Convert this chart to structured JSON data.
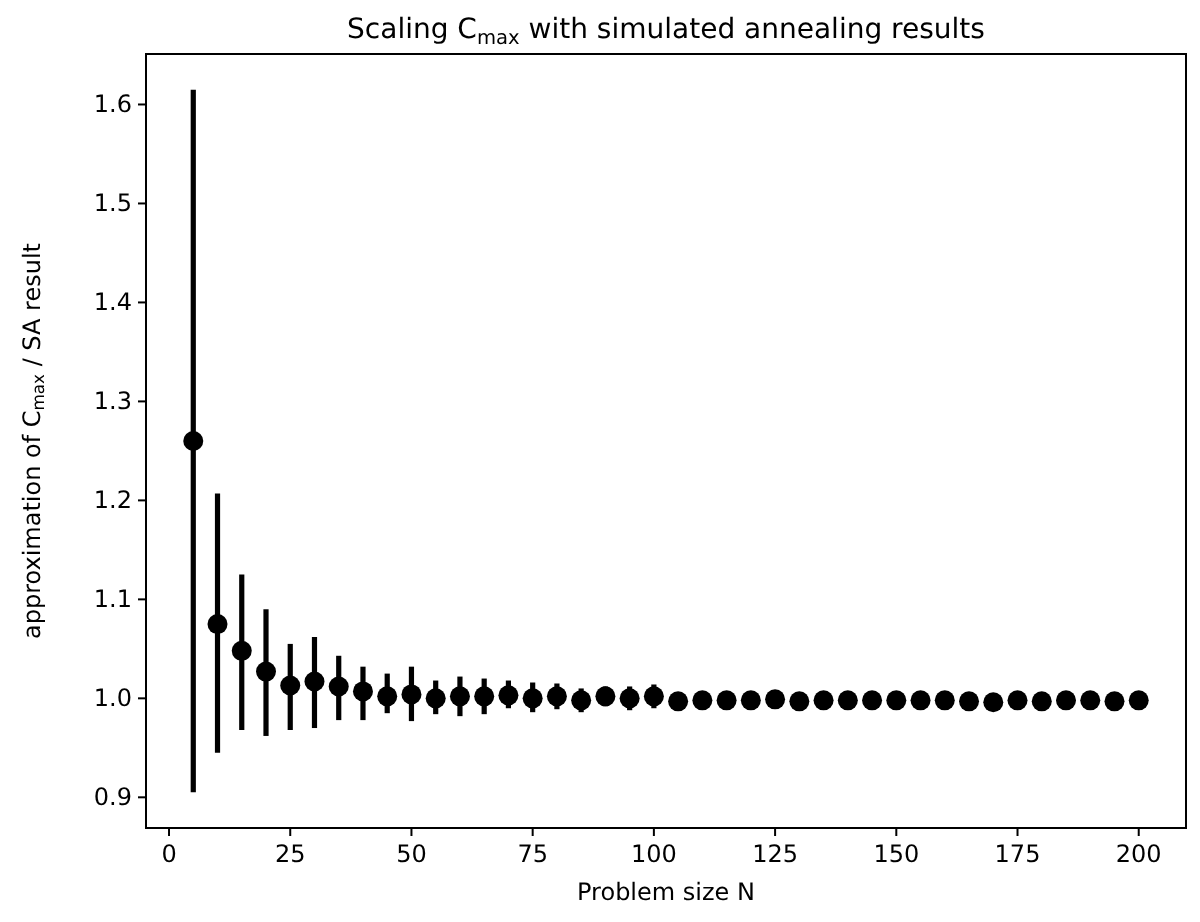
{
  "chart_data": {
    "type": "scatter",
    "title": "Scaling C$_{max}$ with simulated annealing results",
    "xlabel": "Problem size N",
    "ylabel": "approximation of C$_{max}$ / SA result",
    "marker": "circle",
    "grid": false,
    "xlim": [
      -4.75,
      209.75
    ],
    "xticks": [
      0,
      25,
      50,
      75,
      100,
      125,
      150,
      175,
      200
    ],
    "ylim": [
      0.869,
      1.651
    ],
    "yticks": [
      0.9,
      {
        "value": 1.0,
        "label": "1.0"
      },
      1.1,
      1.2,
      1.3,
      1.4,
      1.5,
      1.6
    ],
    "series": [
      {
        "color": "#000000",
        "x": [
          5,
          10,
          15,
          20,
          25,
          30,
          35,
          40,
          45,
          50,
          55,
          60,
          65,
          70,
          75,
          80,
          85,
          90,
          95,
          100,
          105,
          110,
          115,
          120,
          125,
          130,
          135,
          140,
          145,
          150,
          155,
          160,
          165,
          170,
          175,
          180,
          185,
          190,
          195,
          200
        ],
        "values": [
          1.26,
          1.075,
          1.048,
          1.027,
          1.013,
          1.017,
          1.012,
          1.007,
          1.002,
          1.004,
          1.0,
          1.002,
          1.002,
          1.003,
          1.0,
          1.002,
          0.998,
          1.002,
          1.0,
          1.002,
          0.997,
          0.998,
          0.998,
          0.998,
          0.999,
          0.997,
          0.998,
          0.998,
          0.998,
          0.998,
          0.998,
          0.998,
          0.997,
          0.996,
          0.998,
          0.997,
          0.998,
          0.998,
          0.997,
          0.998
        ],
        "errors": [
          [
            0.905,
            1.615
          ],
          [
            0.945,
            1.207
          ],
          [
            0.968,
            1.125
          ],
          [
            0.962,
            1.09
          ],
          [
            0.968,
            1.055
          ],
          [
            0.97,
            1.062
          ],
          [
            0.978,
            1.043
          ],
          [
            0.978,
            1.032
          ],
          [
            0.985,
            1.025
          ],
          [
            0.977,
            1.032
          ],
          [
            0.984,
            1.018
          ],
          [
            0.982,
            1.022
          ],
          [
            0.984,
            1.02
          ],
          [
            0.99,
            1.018
          ],
          [
            0.986,
            1.016
          ],
          [
            0.989,
            1.015
          ],
          [
            0.986,
            1.01
          ],
          [
            0.992,
            1.012
          ],
          [
            0.988,
            1.012
          ],
          [
            0.99,
            1.014
          ],
          [
            0.99,
            1.005
          ],
          [
            0.991,
            1.005
          ],
          [
            0.992,
            1.004
          ],
          [
            0.992,
            1.004
          ],
          [
            0.993,
            1.005
          ],
          [
            0.991,
            1.003
          ],
          [
            0.992,
            1.004
          ],
          [
            0.992,
            1.004
          ],
          [
            0.993,
            1.003
          ],
          [
            0.993,
            1.003
          ],
          [
            0.993,
            1.003
          ],
          [
            0.993,
            1.003
          ],
          [
            0.992,
            1.002
          ],
          [
            0.991,
            1.001
          ],
          [
            0.993,
            1.003
          ],
          [
            0.992,
            1.002
          ],
          [
            0.993,
            1.003
          ],
          [
            0.993,
            1.003
          ],
          [
            0.992,
            1.002
          ],
          [
            0.993,
            1.003
          ]
        ]
      }
    ]
  }
}
